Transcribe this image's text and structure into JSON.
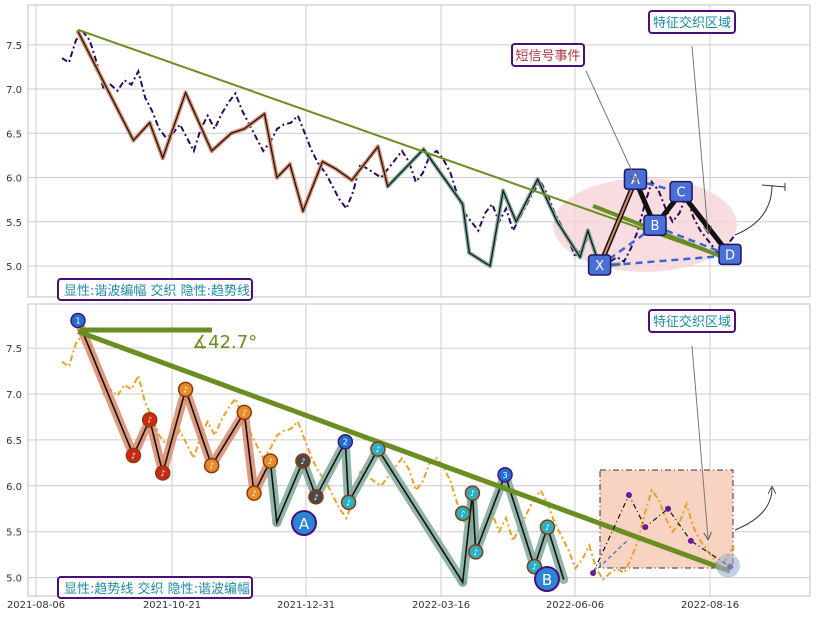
{
  "colors": {
    "ink": "#333333",
    "grid": "#cccccc",
    "frame": "#bfbfbf",
    "price_dark": "#2a0a5e",
    "price_orange": "#e8a22a",
    "trend_green": "#6b8e23",
    "wave_salmon": "#d98a6a",
    "wave_teal": "#7fa89a",
    "pattern_blue": "#3d63d6",
    "pattern_box": "#4a6fd9",
    "region_pink": "#f5d5d8",
    "region_peach": "#f8d3c2",
    "badge_border": "#4b0f7a",
    "badge_text_teal": "#1f8aa6",
    "badge_text_red": "#b0353f",
    "harmonic_red": "#cc2a10",
    "harmonic_orange": "#ea8a2a",
    "harmonic_gray": "#4a4a4a",
    "harmonic_teal": "#2ab0c0",
    "harmonic_blue": "#2070d0"
  },
  "chart_data": [
    {
      "type": "line",
      "panel": "top",
      "x_ticks": [
        "2021-08-06",
        "2021-10-21",
        "2021-12-31",
        "2022-03-16",
        "2022-06-06",
        "2022-08-16"
      ],
      "ylim": [
        4.65,
        7.95
      ],
      "y_ticks": [
        5.0,
        5.5,
        6.0,
        6.5,
        7.0,
        7.5
      ],
      "grid": true,
      "legend_text": "显性:谐波编幅 交织 隐性:趋势线",
      "callouts": [
        "短信号事件",
        "特征交织区域"
      ],
      "pattern_labels": [
        "X",
        "A",
        "B",
        "C",
        "D"
      ],
      "price_series": [
        7.35,
        7.3,
        7.55,
        7.65,
        7.55,
        7.3,
        7.0,
        7.05,
        6.98,
        7.1,
        7.05,
        7.2,
        6.9,
        6.75,
        6.55,
        6.45,
        6.5,
        6.6,
        6.45,
        6.3,
        6.55,
        6.7,
        6.55,
        6.72,
        6.85,
        6.95,
        6.75,
        6.6,
        6.45,
        6.3,
        6.4,
        6.55,
        6.6,
        6.62,
        6.7,
        6.5,
        6.3,
        6.15,
        6.05,
        5.9,
        5.75,
        5.65,
        5.85,
        6.15,
        6.1,
        6.05,
        6.0,
        6.1,
        6.2,
        6.3,
        6.18,
        5.95,
        6.05,
        6.25,
        6.3,
        6.2,
        6.05,
        5.8,
        5.6,
        5.5,
        5.4,
        5.6,
        5.7,
        5.5,
        5.65,
        5.4,
        5.55,
        5.7,
        5.85,
        5.95,
        5.8,
        5.6,
        5.45,
        5.3,
        5.1,
        5.2,
        5.35,
        5.1,
        4.98,
        5.05,
        5.1,
        5.05,
        5.2,
        5.4,
        5.7,
        5.95,
        5.85,
        5.65,
        5.5,
        5.6,
        5.8,
        5.55,
        5.4,
        5.3,
        5.2,
        5.1,
        5.25,
        5.35
      ],
      "wave_points": [
        [
          0.0,
          7.65
        ],
        [
          0.085,
          6.42
        ],
        [
          0.11,
          6.62
        ],
        [
          0.13,
          6.22
        ],
        [
          0.165,
          6.96
        ],
        [
          0.205,
          6.3
        ],
        [
          0.235,
          6.5
        ],
        [
          0.255,
          6.55
        ],
        [
          0.286,
          6.72
        ],
        [
          0.305,
          6.0
        ],
        [
          0.325,
          6.15
        ],
        [
          0.345,
          5.62
        ],
        [
          0.375,
          6.18
        ],
        [
          0.395,
          6.1
        ],
        [
          0.42,
          5.97
        ],
        [
          0.46,
          6.35
        ],
        [
          0.475,
          5.9
        ],
        [
          0.53,
          6.32
        ],
        [
          0.59,
          5.7
        ],
        [
          0.6,
          5.15
        ],
        [
          0.632,
          5.0
        ],
        [
          0.652,
          5.85
        ],
        [
          0.672,
          5.5
        ],
        [
          0.705,
          5.98
        ],
        [
          0.735,
          5.5
        ],
        [
          0.77,
          5.1
        ],
        [
          0.782,
          5.4
        ],
        [
          0.8,
          5.0
        ],
        [
          0.83,
          5.02
        ]
      ],
      "trend_line": [
        [
          0.0,
          7.67
        ],
        [
          1.0,
          5.07
        ]
      ],
      "xabcd": [
        [
          0.8,
          5.0
        ],
        [
          0.855,
          5.97
        ],
        [
          0.885,
          5.45
        ],
        [
          0.925,
          5.83
        ],
        [
          1.0,
          5.12
        ]
      ]
    },
    {
      "type": "line",
      "panel": "bottom",
      "x_ticks": [
        "2021-08-06",
        "2021-10-21",
        "2021-12-31",
        "2022-03-16",
        "2022-06-06",
        "2022-08-16"
      ],
      "ylim": [
        4.8,
        7.98
      ],
      "y_ticks": [
        5.0,
        5.5,
        6.0,
        6.5,
        7.0,
        7.5
      ],
      "grid": true,
      "legend_text": "显性:趋势线 交织 隐性:谐波编幅",
      "callouts": [
        "特征交织区域"
      ],
      "angle_label": "∡42.7°",
      "pivot_labels": [
        "A",
        "B"
      ],
      "harmonic_points": [
        [
          0.0,
          7.8,
          "1",
          "blue"
        ],
        [
          0.085,
          6.33,
          "♪",
          "red"
        ],
        [
          0.11,
          6.72,
          "♪",
          "red"
        ],
        [
          0.13,
          6.14,
          "♪",
          "red"
        ],
        [
          0.165,
          7.05,
          "♪",
          "orange"
        ],
        [
          0.205,
          6.22,
          "♪",
          "orange"
        ],
        [
          0.255,
          6.8,
          "♪",
          "orange"
        ],
        [
          0.27,
          5.92,
          "♪",
          "orange"
        ],
        [
          0.295,
          6.27,
          "♪",
          "orange"
        ],
        [
          0.345,
          6.27,
          "♪",
          "gray"
        ],
        [
          0.365,
          5.88,
          "♪",
          "gray"
        ],
        [
          0.41,
          6.48,
          "2",
          "blue"
        ],
        [
          0.415,
          5.82,
          "♪",
          "teal"
        ],
        [
          0.46,
          6.4,
          "♪",
          "teal"
        ],
        [
          0.59,
          5.7,
          "♪",
          "teal"
        ],
        [
          0.605,
          5.92,
          "♪",
          "teal"
        ],
        [
          0.61,
          5.28,
          "♪",
          "teal"
        ],
        [
          0.655,
          6.12,
          "3",
          "blue"
        ],
        [
          0.7,
          5.12,
          "♪",
          "teal"
        ],
        [
          0.72,
          5.55,
          "♪",
          "teal"
        ]
      ]
    }
  ]
}
